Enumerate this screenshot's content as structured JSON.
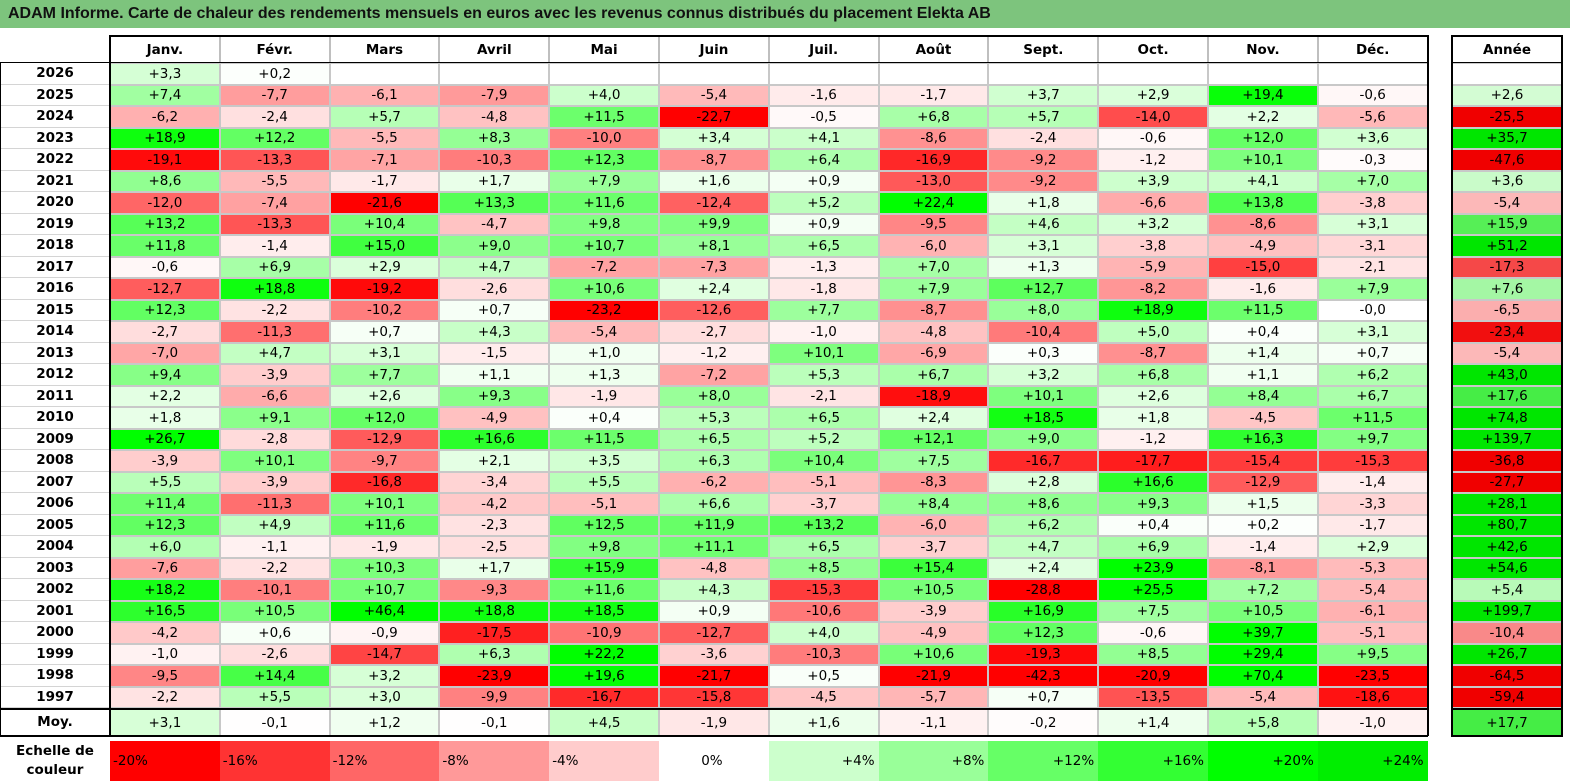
{
  "title": "ADAM Informe. Carte de chaleur des rendements mensuels en euros avec les revenus connus distribués du placement Elekta AB",
  "chart_data": {
    "type": "heatmap",
    "months": [
      "Janv.",
      "Févr.",
      "Mars",
      "Avril",
      "Mai",
      "Juin",
      "Juil.",
      "Août",
      "Sept.",
      "Oct.",
      "Nov.",
      "Déc."
    ],
    "year_col_label": "Année",
    "avg_row_label": "Moy.",
    "rows": [
      {
        "year": "2026",
        "values": [
          "+3,3",
          "+0,2",
          null,
          null,
          null,
          null,
          null,
          null,
          null,
          null,
          null,
          null
        ],
        "annual": null
      },
      {
        "year": "2025",
        "values": [
          "+7,4",
          "-7,7",
          "-6,1",
          "-7,9",
          "+4,0",
          "-5,4",
          "-1,6",
          "-1,7",
          "+3,7",
          "+2,9",
          "+19,4",
          "-0,6"
        ],
        "annual": "+2,6"
      },
      {
        "year": "2024",
        "values": [
          "-6,2",
          "-2,4",
          "+5,7",
          "-4,8",
          "+11,5",
          "-22,7",
          "-0,5",
          "+6,8",
          "+5,7",
          "-14,0",
          "+2,2",
          "-5,6"
        ],
        "annual": "-25,5"
      },
      {
        "year": "2023",
        "values": [
          "+18,9",
          "+12,2",
          "-5,5",
          "+8,3",
          "-10,0",
          "+3,4",
          "+4,1",
          "-8,6",
          "-2,4",
          "-0,6",
          "+12,0",
          "+3,6"
        ],
        "annual": "+35,7"
      },
      {
        "year": "2022",
        "values": [
          "-19,1",
          "-13,3",
          "-7,1",
          "-10,3",
          "+12,3",
          "-8,7",
          "+6,4",
          "-16,9",
          "-9,2",
          "-1,2",
          "+10,1",
          "-0,3"
        ],
        "annual": "-47,6"
      },
      {
        "year": "2021",
        "values": [
          "+8,6",
          "-5,5",
          "-1,7",
          "+1,7",
          "+7,9",
          "+1,6",
          "+0,9",
          "-13,0",
          "-9,2",
          "+3,9",
          "+4,1",
          "+7,0"
        ],
        "annual": "+3,6"
      },
      {
        "year": "2020",
        "values": [
          "-12,0",
          "-7,4",
          "-21,6",
          "+13,3",
          "+11,6",
          "-12,4",
          "+5,2",
          "+22,4",
          "+1,8",
          "-6,6",
          "+13,8",
          "-3,8"
        ],
        "annual": "-5,4"
      },
      {
        "year": "2019",
        "values": [
          "+13,2",
          "-13,3",
          "+10,4",
          "-4,7",
          "+9,8",
          "+9,9",
          "+0,9",
          "-9,5",
          "+4,6",
          "+3,2",
          "-8,6",
          "+3,1"
        ],
        "annual": "+15,9"
      },
      {
        "year": "2018",
        "values": [
          "+11,8",
          "-1,4",
          "+15,0",
          "+9,0",
          "+10,7",
          "+8,1",
          "+6,5",
          "-6,0",
          "+3,1",
          "-3,8",
          "-4,9",
          "-3,1"
        ],
        "annual": "+51,2"
      },
      {
        "year": "2017",
        "values": [
          "-0,6",
          "+6,9",
          "+2,9",
          "+4,7",
          "-7,2",
          "-7,3",
          "-1,3",
          "+7,0",
          "+1,3",
          "-5,9",
          "-15,0",
          "-2,1"
        ],
        "annual": "-17,3"
      },
      {
        "year": "2016",
        "values": [
          "-12,7",
          "+18,8",
          "-19,2",
          "-2,6",
          "+10,6",
          "+2,4",
          "-1,8",
          "+7,9",
          "+12,7",
          "-8,2",
          "-1,6",
          "+7,9"
        ],
        "annual": "+7,6"
      },
      {
        "year": "2015",
        "values": [
          "+12,3",
          "-2,2",
          "-10,2",
          "+0,7",
          "-23,2",
          "-12,6",
          "+7,7",
          "-8,7",
          "+8,0",
          "+18,9",
          "+11,5",
          "-0,0"
        ],
        "annual": "-6,5"
      },
      {
        "year": "2014",
        "values": [
          "-2,7",
          "-11,3",
          "+0,7",
          "+4,3",
          "-5,4",
          "-2,7",
          "-1,0",
          "-4,8",
          "-10,4",
          "+5,0",
          "+0,4",
          "+3,1"
        ],
        "annual": "-23,4"
      },
      {
        "year": "2013",
        "values": [
          "-7,0",
          "+4,7",
          "+3,1",
          "-1,5",
          "+1,0",
          "-1,2",
          "+10,1",
          "-6,9",
          "+0,3",
          "-8,7",
          "+1,4",
          "+0,7"
        ],
        "annual": "-5,4"
      },
      {
        "year": "2012",
        "values": [
          "+9,4",
          "-3,9",
          "+7,7",
          "+1,1",
          "+1,3",
          "-7,2",
          "+5,3",
          "+6,7",
          "+3,2",
          "+6,8",
          "+1,1",
          "+6,2"
        ],
        "annual": "+43,0"
      },
      {
        "year": "2011",
        "values": [
          "+2,2",
          "-6,6",
          "+2,6",
          "+9,3",
          "-1,9",
          "+8,0",
          "-2,1",
          "-18,9",
          "+10,1",
          "+2,6",
          "+8,4",
          "+6,7"
        ],
        "annual": "+17,6"
      },
      {
        "year": "2010",
        "values": [
          "+1,8",
          "+9,1",
          "+12,0",
          "-4,9",
          "+0,4",
          "+5,3",
          "+6,5",
          "+2,4",
          "+18,5",
          "+1,8",
          "-4,5",
          "+11,5"
        ],
        "annual": "+74,8"
      },
      {
        "year": "2009",
        "values": [
          "+26,7",
          "-2,8",
          "-12,9",
          "+16,6",
          "+11,5",
          "+6,5",
          "+5,2",
          "+12,1",
          "+9,0",
          "-1,2",
          "+16,3",
          "+9,7"
        ],
        "annual": "+139,7"
      },
      {
        "year": "2008",
        "values": [
          "-3,9",
          "+10,1",
          "-9,7",
          "+2,1",
          "+3,5",
          "+6,3",
          "+10,4",
          "+7,5",
          "-16,7",
          "-17,7",
          "-15,4",
          "-15,3"
        ],
        "annual": "-36,8"
      },
      {
        "year": "2007",
        "values": [
          "+5,5",
          "-3,9",
          "-16,8",
          "-3,4",
          "+5,5",
          "-6,2",
          "-5,1",
          "-8,3",
          "+2,8",
          "+16,6",
          "-12,9",
          "-1,4"
        ],
        "annual": "-27,7"
      },
      {
        "year": "2006",
        "values": [
          "+11,4",
          "-11,3",
          "+10,1",
          "-4,2",
          "-5,1",
          "+6,6",
          "-3,7",
          "+8,4",
          "+8,6",
          "+9,3",
          "+1,5",
          "-3,3"
        ],
        "annual": "+28,1"
      },
      {
        "year": "2005",
        "values": [
          "+12,3",
          "+4,9",
          "+11,6",
          "-2,3",
          "+12,5",
          "+11,9",
          "+13,2",
          "-6,0",
          "+6,2",
          "+0,4",
          "+0,2",
          "-1,7"
        ],
        "annual": "+80,7"
      },
      {
        "year": "2004",
        "values": [
          "+6,0",
          "-1,1",
          "-1,9",
          "-2,5",
          "+9,8",
          "+11,1",
          "+6,5",
          "-3,7",
          "+4,7",
          "+6,9",
          "-1,4",
          "+2,9"
        ],
        "annual": "+42,6"
      },
      {
        "year": "2003",
        "values": [
          "-7,6",
          "-2,2",
          "+10,3",
          "+1,7",
          "+15,9",
          "-4,8",
          "+8,5",
          "+15,4",
          "+2,4",
          "+23,9",
          "-8,1",
          "-5,3"
        ],
        "annual": "+54,6"
      },
      {
        "year": "2002",
        "values": [
          "+18,2",
          "-10,1",
          "+10,7",
          "-9,3",
          "+11,6",
          "+4,3",
          "-15,3",
          "+10,5",
          "-28,8",
          "+25,5",
          "+7,2",
          "-5,4"
        ],
        "annual": "+5,4"
      },
      {
        "year": "2001",
        "values": [
          "+16,5",
          "+10,5",
          "+46,4",
          "+18,8",
          "+18,5",
          "+0,9",
          "-10,6",
          "-3,9",
          "+16,9",
          "+7,5",
          "+10,5",
          "-6,1"
        ],
        "annual": "+199,7"
      },
      {
        "year": "2000",
        "values": [
          "-4,2",
          "+0,6",
          "-0,9",
          "-17,5",
          "-10,9",
          "-12,7",
          "+4,0",
          "-4,9",
          "+12,3",
          "-0,6",
          "+39,7",
          "-5,1"
        ],
        "annual": "-10,4"
      },
      {
        "year": "1999",
        "values": [
          "-1,0",
          "-2,6",
          "-14,7",
          "+6,3",
          "+22,2",
          "-3,6",
          "-10,3",
          "+10,6",
          "-19,3",
          "+8,5",
          "+29,4",
          "+9,5"
        ],
        "annual": "+26,7"
      },
      {
        "year": "1998",
        "values": [
          "-9,5",
          "+14,4",
          "+3,2",
          "-23,9",
          "+19,6",
          "-21,7",
          "+0,5",
          "-21,9",
          "-42,3",
          "-20,9",
          "+70,4",
          "-23,5"
        ],
        "annual": "-64,5"
      },
      {
        "year": "1997",
        "values": [
          "-2,2",
          "+5,5",
          "+3,0",
          "-9,9",
          "-16,7",
          "-15,8",
          "-4,5",
          "-5,7",
          "+0,7",
          "-13,5",
          "-5,4",
          "-18,6"
        ],
        "annual": "-59,4"
      }
    ],
    "averages": {
      "values": [
        "+3,1",
        "-0,1",
        "+1,2",
        "-0,1",
        "+4,5",
        "-1,9",
        "+1,6",
        "-1,1",
        "-0,2",
        "+1,4",
        "+5,8",
        "-1,0"
      ],
      "annual": "+17,7"
    },
    "legend": {
      "title_line1": "Echelle de",
      "title_line2": "couleur",
      "steps": [
        {
          "label": "-20%",
          "color": "#ff0000"
        },
        {
          "label": "-16%",
          "color": "#ff3333"
        },
        {
          "label": "-12%",
          "color": "#ff6666"
        },
        {
          "label": "-8%",
          "color": "#ff9999"
        },
        {
          "label": "-4%",
          "color": "#ffcccc"
        },
        {
          "label": "0%",
          "color": "#ffffff"
        },
        {
          "label": "+4%",
          "color": "#ccffcc"
        },
        {
          "label": "+8%",
          "color": "#99ff99"
        },
        {
          "label": "+12%",
          "color": "#66ff66"
        },
        {
          "label": "+16%",
          "color": "#33ff33"
        },
        {
          "label": "+20%",
          "color": "#00ff00"
        },
        {
          "label": "+24%",
          "color": "#00ee00"
        }
      ]
    }
  }
}
